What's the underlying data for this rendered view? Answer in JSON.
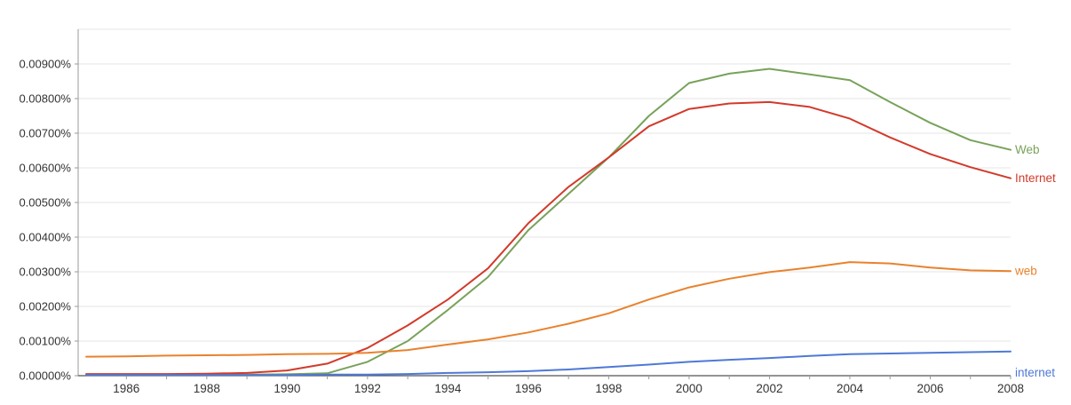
{
  "chart_data": {
    "type": "line",
    "title": "",
    "xlabel": "",
    "ylabel": "",
    "grid": true,
    "legend_position": "right-line-end-labels",
    "xlim": [
      1985,
      2008
    ],
    "ylim": [
      0,
      0.01
    ],
    "x": [
      1985,
      1986,
      1987,
      1988,
      1989,
      1990,
      1991,
      1992,
      1993,
      1994,
      1995,
      1996,
      1997,
      1998,
      1999,
      2000,
      2001,
      2002,
      2003,
      2004,
      2005,
      2006,
      2007,
      2008
    ],
    "xticks": [
      "1986",
      "1988",
      "1990",
      "1992",
      "1994",
      "1996",
      "1998",
      "2000",
      "2002",
      "2004",
      "2006",
      "2008"
    ],
    "yticks": [
      "0.00000%",
      "0.00100%",
      "0.00200%",
      "0.00300%",
      "0.00400%",
      "0.00500%",
      "0.00600%",
      "0.00700%",
      "0.00800%",
      "0.00900%"
    ],
    "series": [
      {
        "name": "Web",
        "color": "#78a25a",
        "values": [
          3e-05,
          3e-05,
          3e-05,
          3e-05,
          3e-05,
          4e-05,
          7e-05,
          0.0004,
          0.001,
          0.0019,
          0.00285,
          0.0042,
          0.00525,
          0.0063,
          0.0075,
          0.00845,
          0.00872,
          0.00886,
          0.0087,
          0.00853,
          0.0079,
          0.0073,
          0.0068,
          0.00652
        ]
      },
      {
        "name": "Internet",
        "color": "#d23a2b",
        "values": [
          5e-05,
          5e-05,
          5e-05,
          6e-05,
          8e-05,
          0.00015,
          0.00035,
          0.0008,
          0.00145,
          0.0022,
          0.0031,
          0.0044,
          0.00545,
          0.0063,
          0.0072,
          0.0077,
          0.00786,
          0.0079,
          0.00776,
          0.00742,
          0.00688,
          0.0064,
          0.00602,
          0.0057
        ]
      },
      {
        "name": "web",
        "color": "#e8822d",
        "values": [
          0.00055,
          0.00056,
          0.00058,
          0.00059,
          0.0006,
          0.00062,
          0.00063,
          0.00066,
          0.00074,
          0.0009,
          0.00105,
          0.00125,
          0.0015,
          0.0018,
          0.0022,
          0.00255,
          0.0028,
          0.00299,
          0.00312,
          0.00328,
          0.00324,
          0.00312,
          0.00304,
          0.00302
        ]
      },
      {
        "name": "internet",
        "color": "#4e79d6",
        "values": [
          2e-05,
          2e-05,
          2e-05,
          2e-05,
          2e-05,
          2e-05,
          3e-05,
          3e-05,
          5e-05,
          8e-05,
          0.0001,
          0.00013,
          0.00018,
          0.00025,
          0.00032,
          0.0004,
          0.00046,
          0.00051,
          0.00057,
          0.00062,
          0.00064,
          0.00066,
          0.00068,
          0.0007
        ]
      }
    ],
    "series_label_dy": [
      0,
      0,
      0,
      24
    ],
    "colors": {
      "axis_x": "#555555",
      "axis_y": "#999999",
      "gridline": "#e5e5e5",
      "tick_text": "#333333",
      "background": "#ffffff"
    }
  }
}
